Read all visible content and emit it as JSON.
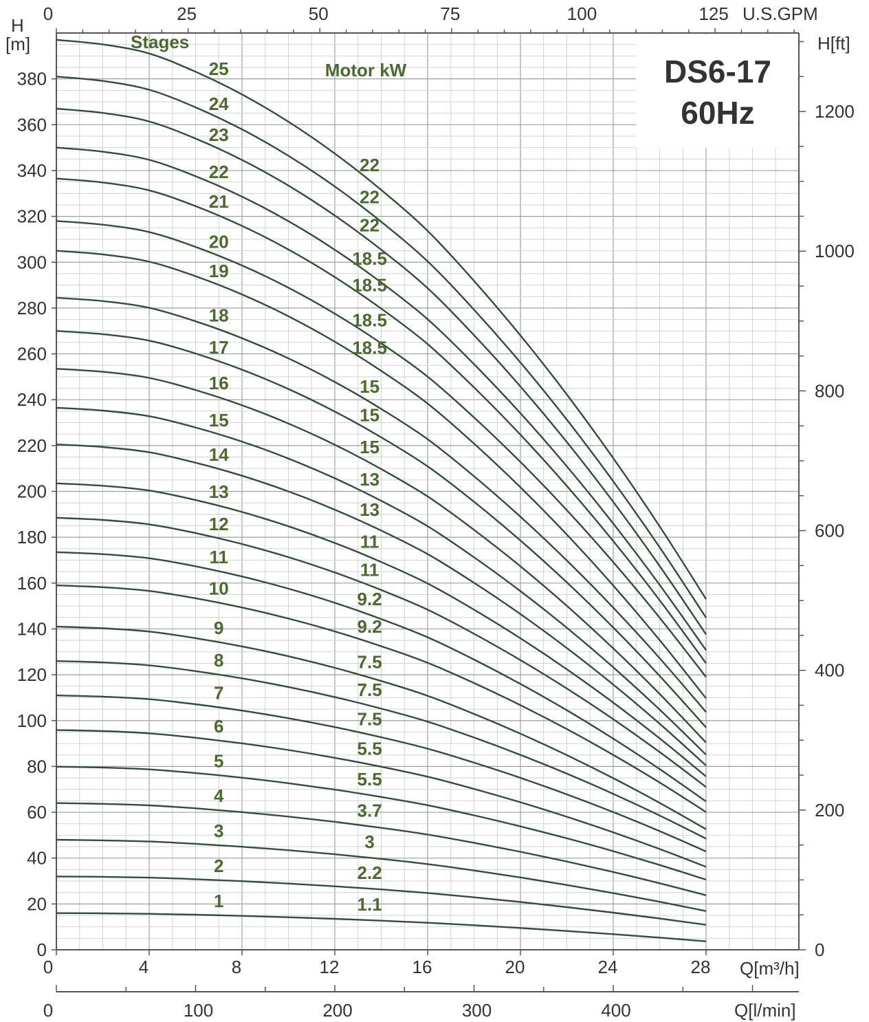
{
  "colors": {
    "curve": "#2e5038",
    "label_green": "#4a6b2e",
    "grid_minor": "#d2d2d2",
    "grid_major": "#9f9f9f",
    "axis": "#555555",
    "text": "#333333"
  },
  "chart_data": {
    "type": "line",
    "title": "DS6-17",
    "subtitle": "60Hz",
    "x_axes": {
      "bottom_m3h": {
        "label": "Q[m³/h]",
        "range": [
          0,
          32
        ],
        "ticks": [
          0,
          4,
          8,
          12,
          16,
          20,
          24,
          28
        ]
      },
      "bottom_lmin": {
        "label": "Q[l/min]",
        "range": [
          0,
          533.3
        ],
        "ticks": [
          0,
          100,
          200,
          300,
          400
        ]
      },
      "top_gpm": {
        "label": "U.S.GPM",
        "range": [
          0,
          140.9
        ],
        "ticks": [
          0,
          25,
          50,
          75,
          100,
          125
        ]
      }
    },
    "y_axes": {
      "left_m": {
        "label_top": "H",
        "label_unit": "[m]",
        "range": [
          0,
          400
        ],
        "ticks": [
          0,
          20,
          40,
          60,
          80,
          100,
          120,
          140,
          160,
          180,
          200,
          220,
          240,
          260,
          280,
          300,
          320,
          340,
          360,
          380
        ]
      },
      "right_ft": {
        "label": "H[ft]",
        "range": [
          0,
          1312.3
        ],
        "ticks": [
          0,
          200,
          400,
          600,
          800,
          1000,
          1200
        ]
      }
    },
    "grid": true,
    "legend_headers": {
      "stages": "Stages",
      "motor": "Motor kW"
    },
    "stage_head": {
      "q": [
        0,
        2,
        4,
        6,
        8,
        10,
        12,
        14,
        16,
        18,
        20,
        22,
        24,
        26,
        28
      ],
      "h": [
        16.0,
        15.9,
        15.7,
        15.3,
        14.8,
        14.2,
        13.5,
        12.7,
        11.8,
        10.7,
        9.5,
        8.2,
        6.8,
        5.3,
        3.7
      ]
    },
    "series": [
      {
        "stages": "1",
        "motor_kw": "1.1",
        "h0": 16.0,
        "h28": 3.7
      },
      {
        "stages": "2",
        "motor_kw": "2.2",
        "h0": 32.0,
        "h28": 10.9
      },
      {
        "stages": "3",
        "motor_kw": "3",
        "h0": 48.0,
        "h28": 16.9
      },
      {
        "stages": "4",
        "motor_kw": "3.7",
        "h0": 64.0,
        "h28": 23.8
      },
      {
        "stages": "5",
        "motor_kw": "5.5",
        "h0": 79.9,
        "h28": 30.6
      },
      {
        "stages": "6",
        "motor_kw": "5.5",
        "h0": 95.9,
        "h28": 36.2
      },
      {
        "stages": "7",
        "motor_kw": "7.5",
        "h0": 111.0,
        "h28": 42.9
      },
      {
        "stages": "8",
        "motor_kw": "7.5",
        "h0": 126.0,
        "h28": 48.5
      },
      {
        "stages": "9",
        "motor_kw": "7.5",
        "h0": 141.0,
        "h28": 52.6
      },
      {
        "stages": "10",
        "motor_kw": "9.2",
        "h0": 159.0,
        "h28": 60.1
      },
      {
        "stages": "11",
        "motor_kw": "9.2",
        "h0": 173.5,
        "h28": 64.7
      },
      {
        "stages": "12",
        "motor_kw": "11",
        "h0": 188.5,
        "h28": 71.0
      },
      {
        "stages": "13",
        "motor_kw": "11",
        "h0": 203.5,
        "h28": 75.6
      },
      {
        "stages": "14",
        "motor_kw": "13",
        "h0": 220.5,
        "h28": 80.4
      },
      {
        "stages": "15",
        "motor_kw": "13",
        "h0": 236.5,
        "h28": 85.1
      },
      {
        "stages": "16",
        "motor_kw": "15",
        "h0": 253.5,
        "h28": 90.4
      },
      {
        "stages": "17",
        "motor_kw": "15",
        "h0": 270.0,
        "h28": 97.0
      },
      {
        "stages": "18",
        "motor_kw": "15",
        "h0": 284.5,
        "h28": 103.7
      },
      {
        "stages": "19",
        "motor_kw": "18.5",
        "h0": 305.0,
        "h28": 109.7
      },
      {
        "stages": "20",
        "motor_kw": "18.5",
        "h0": 318.0,
        "h28": 119.0
      },
      {
        "stages": "21",
        "motor_kw": "18.5",
        "h0": 336.5,
        "h28": 125.0
      },
      {
        "stages": "22",
        "motor_kw": "18.5",
        "h0": 350.0,
        "h28": 130.7
      },
      {
        "stages": "23",
        "motor_kw": "22",
        "h0": 367.0,
        "h28": 137.6
      },
      {
        "stages": "24",
        "motor_kw": "22",
        "h0": 381.0,
        "h28": 144.9
      },
      {
        "stages": "25",
        "motor_kw": "22",
        "h0": 397.0,
        "h28": 153.0
      }
    ]
  }
}
